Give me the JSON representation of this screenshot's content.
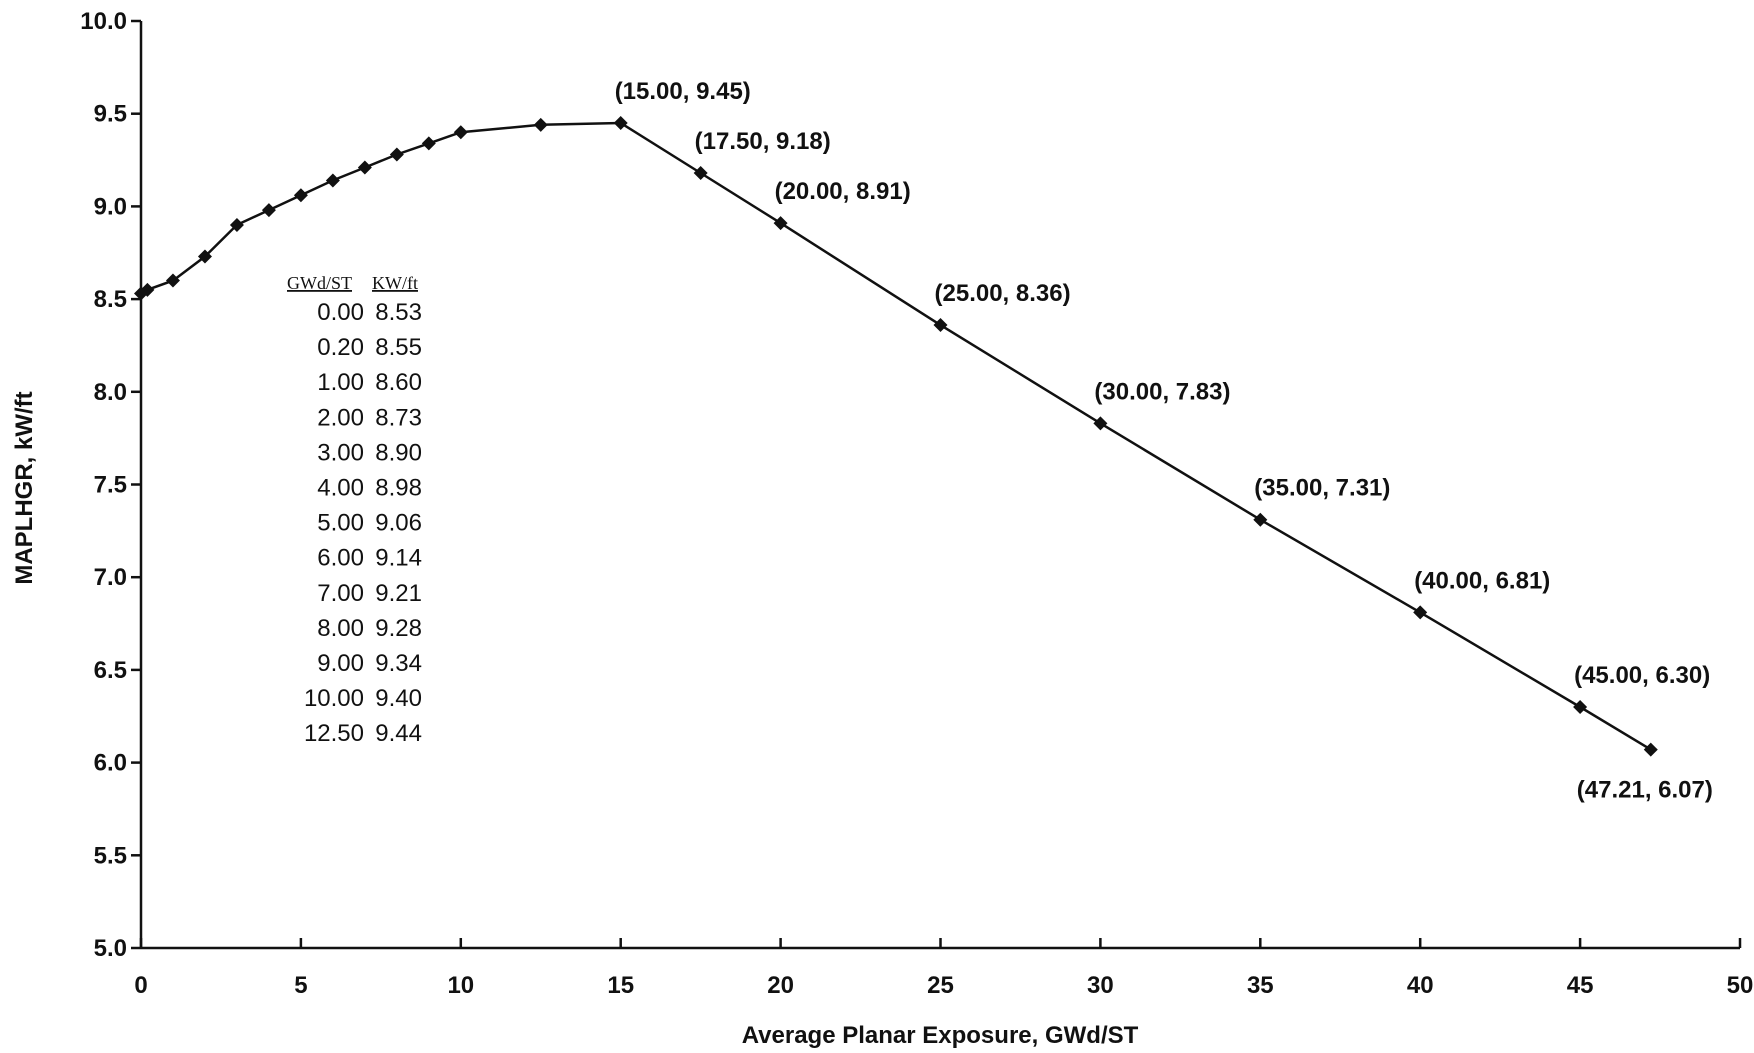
{
  "chart_data": {
    "type": "line",
    "title": "",
    "xlabel": "Average Planar Exposure, GWd/ST",
    "ylabel": "MAPLHGR, kW/ft",
    "xlim": [
      0,
      50
    ],
    "ylim": [
      5.0,
      10.0
    ],
    "x_ticks": [
      "0",
      "5",
      "10",
      "15",
      "20",
      "25",
      "30",
      "35",
      "40",
      "45",
      "50"
    ],
    "y_ticks": [
      "5.0",
      "5.5",
      "6.0",
      "6.5",
      "7.0",
      "7.5",
      "8.0",
      "8.5",
      "9.0",
      "9.5",
      "10.0"
    ],
    "grid": false,
    "legend": "none",
    "series": [
      {
        "x": [
          0.0,
          0.2,
          1.0,
          2.0,
          3.0,
          4.0,
          5.0,
          6.0,
          7.0,
          8.0,
          9.0,
          10.0,
          12.5,
          15.0,
          17.5,
          20.0,
          25.0,
          30.0,
          35.0,
          40.0,
          45.0,
          47.21
        ],
        "y": [
          8.53,
          8.55,
          8.6,
          8.73,
          8.9,
          8.98,
          9.06,
          9.14,
          9.21,
          9.28,
          9.34,
          9.4,
          9.44,
          9.45,
          9.18,
          8.91,
          8.36,
          7.83,
          7.31,
          6.81,
          6.3,
          6.07
        ]
      }
    ],
    "point_labels": [
      {
        "x": 15.0,
        "y": 9.45,
        "text": "(15.00, 9.45)"
      },
      {
        "x": 17.5,
        "y": 9.18,
        "text": "(17.50, 9.18)"
      },
      {
        "x": 20.0,
        "y": 8.91,
        "text": "(20.00, 8.91)"
      },
      {
        "x": 25.0,
        "y": 8.36,
        "text": "(25.00, 8.36)"
      },
      {
        "x": 30.0,
        "y": 7.83,
        "text": "(30.00, 7.83)"
      },
      {
        "x": 35.0,
        "y": 7.31,
        "text": "(35.00, 7.31)"
      },
      {
        "x": 40.0,
        "y": 6.81,
        "text": "(40.00, 6.81)"
      },
      {
        "x": 45.0,
        "y": 6.3,
        "text": "(45.00, 6.30)"
      },
      {
        "x": 47.21,
        "y": 6.07,
        "text": "(47.21, 6.07)"
      }
    ],
    "table": {
      "headers": [
        "GWd/ST",
        "KW/ft"
      ],
      "rows": [
        [
          "0.00",
          "8.53"
        ],
        [
          "0.20",
          "8.55"
        ],
        [
          "1.00",
          "8.60"
        ],
        [
          "2.00",
          "8.73"
        ],
        [
          "3.00",
          "8.90"
        ],
        [
          "4.00",
          "8.98"
        ],
        [
          "5.00",
          "9.06"
        ],
        [
          "6.00",
          "9.14"
        ],
        [
          "7.00",
          "9.21"
        ],
        [
          "8.00",
          "9.28"
        ],
        [
          "9.00",
          "9.34"
        ],
        [
          "10.00",
          "9.40"
        ],
        [
          "12.50",
          "9.44"
        ]
      ]
    }
  }
}
